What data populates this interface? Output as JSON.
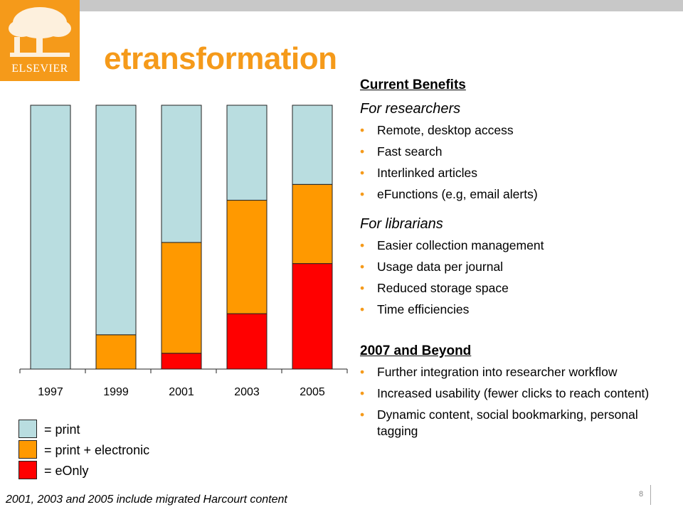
{
  "header": {
    "title": "etransformation"
  },
  "logo": {
    "text": "ELSEVIER"
  },
  "chart_data": {
    "type": "bar",
    "stacked": true,
    "categories": [
      "1997",
      "1999",
      "2001",
      "2003",
      "2005"
    ],
    "ylim": [
      0,
      100
    ],
    "series": [
      {
        "name": "eOnly",
        "color": "#ff0000",
        "values": [
          0,
          0,
          6,
          21,
          40
        ]
      },
      {
        "name": "print + electronic",
        "color": "#ff9900",
        "values": [
          0,
          13,
          42,
          43,
          30
        ]
      },
      {
        "name": "print",
        "color": "#b9dde0",
        "values": [
          100,
          87,
          52,
          36,
          30
        ]
      }
    ],
    "legend": [
      {
        "label": "= print",
        "color": "#b9dde0"
      },
      {
        "label": "= print + electronic",
        "color": "#ff9900"
      },
      {
        "label": "= eOnly",
        "color": "#ff0000"
      }
    ],
    "grid": false,
    "legend_placement": "bottom-left"
  },
  "footnote": "2001, 2003 and 2005 include migrated Harcourt content",
  "benefits": {
    "heading": "Current Benefits",
    "researchers_heading": "For researchers",
    "researchers": [
      "Remote, desktop access",
      "Fast search",
      "Interlinked articles",
      "eFunctions (e.g, email alerts)"
    ],
    "librarians_heading": "For librarians",
    "librarians": [
      "Easier collection management",
      "Usage data per journal",
      "Reduced storage space",
      "Time efficiencies"
    ]
  },
  "beyond": {
    "heading": "2007 and Beyond",
    "items": [
      "Further integration into researcher workflow",
      "Increased usability (fewer clicks to reach content)",
      "Dynamic content, social bookmarking, personal tagging"
    ]
  },
  "bullet_symbol": "•",
  "page_number": "8",
  "colors": {
    "accent": "#f59a1a",
    "topbar": "#c8c8c8"
  }
}
